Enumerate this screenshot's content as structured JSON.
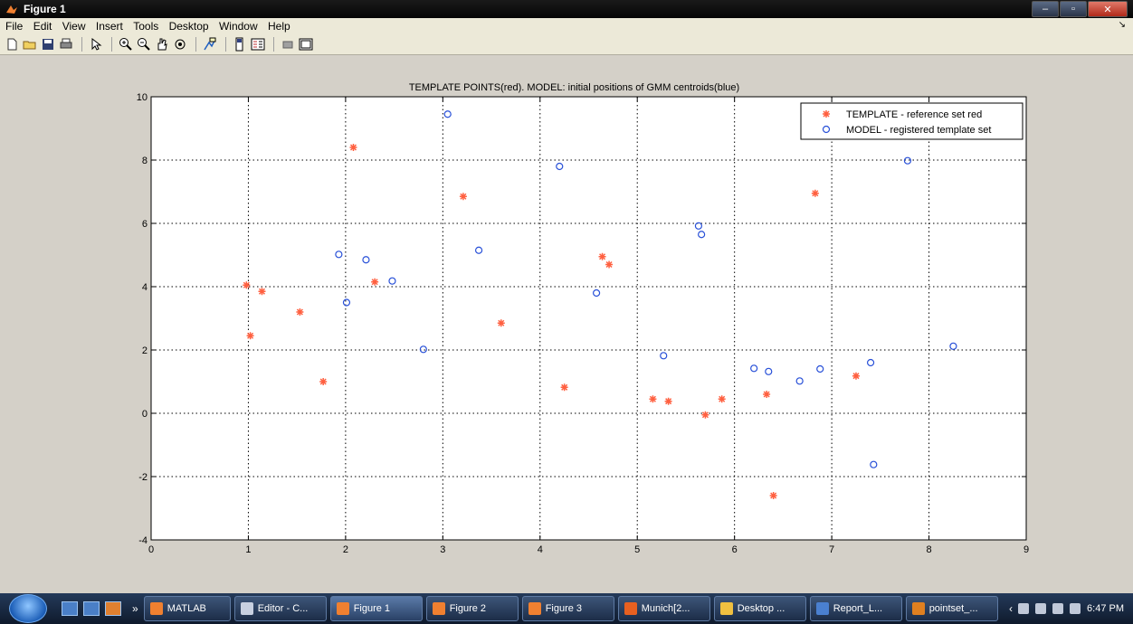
{
  "window": {
    "title": "Figure 1",
    "min": "–",
    "max": "▫",
    "close": "✕"
  },
  "menu": [
    "File",
    "Edit",
    "View",
    "Insert",
    "Tools",
    "Desktop",
    "Window",
    "Help"
  ],
  "menu_arrow": "↘",
  "toolbar": [
    "new-file-icon",
    "open-folder-icon",
    "save-icon",
    "print-icon",
    "pointer-icon",
    "zoom-in-icon",
    "zoom-out-icon",
    "pan-hand-icon",
    "rotate-3d-icon",
    "data-cursor-icon",
    "colorbar-icon",
    "legend-icon",
    "hide-plot-tools-icon",
    "show-plot-tools-icon"
  ],
  "chart_data": {
    "type": "scatter",
    "title": "TEMPLATE POINTS(red). MODEL: initial positions of GMM centroids(blue)",
    "xlabel": "",
    "ylabel": "",
    "xlim": [
      0,
      9
    ],
    "ylim": [
      -4,
      10
    ],
    "xticks": [
      "0",
      "1",
      "2",
      "3",
      "4",
      "5",
      "6",
      "7",
      "8",
      "9"
    ],
    "yticks": [
      "-4",
      "-2",
      "0",
      "2",
      "4",
      "6",
      "8",
      "10"
    ],
    "grid": true,
    "legend_position": "top-right",
    "series": [
      {
        "name": "TEMPLATE - reference set red",
        "marker": "*",
        "color": "#ff6040",
        "x": [
          0.98,
          1.02,
          1.14,
          1.53,
          1.77,
          2.08,
          2.3,
          3.21,
          3.6,
          4.25,
          4.64,
          4.71,
          5.16,
          5.32,
          5.7,
          5.87,
          6.33,
          6.4,
          6.83,
          7.25
        ],
        "y": [
          4.05,
          2.45,
          3.85,
          3.2,
          1.0,
          8.4,
          4.15,
          6.85,
          2.85,
          0.82,
          4.95,
          4.7,
          0.45,
          0.38,
          -0.05,
          0.45,
          0.6,
          -2.6,
          6.95,
          1.18
        ]
      },
      {
        "name": "MODEL - registered template set",
        "marker": "o",
        "color": "#2850d8",
        "x": [
          1.93,
          2.01,
          2.21,
          2.48,
          2.8,
          3.05,
          3.37,
          4.2,
          4.58,
          5.27,
          5.63,
          5.66,
          6.2,
          6.35,
          6.67,
          6.88,
          7.4,
          7.43,
          7.78,
          8.25
        ],
        "y": [
          5.02,
          3.5,
          4.85,
          4.18,
          2.02,
          9.45,
          5.15,
          7.8,
          3.8,
          1.82,
          5.92,
          5.65,
          1.42,
          1.32,
          1.02,
          1.4,
          1.6,
          -1.62,
          7.98,
          2.12
        ]
      }
    ]
  },
  "taskbar": {
    "tasks": [
      {
        "label": "MATLAB",
        "active": false,
        "color": "#f08030"
      },
      {
        "label": "Editor - C...",
        "active": false,
        "color": "#c8d0e0"
      },
      {
        "label": "Figure 1",
        "active": true,
        "color": "#f08030"
      },
      {
        "label": "Figure 2",
        "active": false,
        "color": "#f08030"
      },
      {
        "label": "Figure 3",
        "active": false,
        "color": "#f08030"
      },
      {
        "label": "Munich[2...",
        "active": false,
        "color": "#e86020"
      },
      {
        "label": "Desktop ...",
        "active": false,
        "color": "#f0c040"
      },
      {
        "label": "Report_L...",
        "active": false,
        "color": "#4a80d0"
      },
      {
        "label": "pointset_...",
        "active": false,
        "color": "#e08020"
      }
    ],
    "clock": "6:47 PM",
    "chevron": "»",
    "tray_chevron": "‹"
  }
}
